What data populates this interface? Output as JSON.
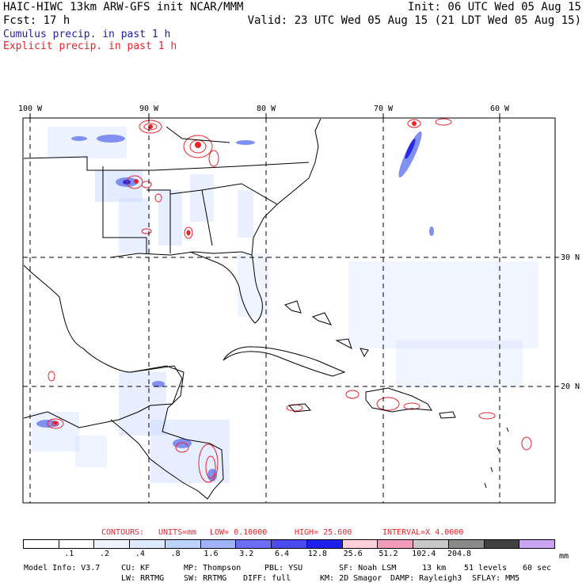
{
  "header": {
    "title": "HAIC-HIWC 13km ARW-GFS init   NCAR/MMM",
    "init": "Init: 06 UTC Wed 05 Aug 15",
    "fcst": "Fcst:   17 h",
    "valid": "Valid: 23 UTC Wed 05 Aug 15 (21 LDT Wed 05 Aug 15)",
    "legend_cumulus": "Cumulus precip. in past 1 h",
    "legend_explicit": "Explicit precip. in past 1 h",
    "cumulus_color": "#3a3ad8",
    "explicit_color": "#e8232a"
  },
  "map": {
    "lon_labels": [
      "100 W",
      "90 W",
      "80 W",
      "70 W",
      "60 W"
    ],
    "lat_labels": [
      "30 N",
      "20 N"
    ],
    "coast_color": "#000000",
    "gridline_style": "dashed"
  },
  "contours": {
    "title": "CONTOURS:",
    "units": "UNITS=mm",
    "low": "LOW= 0.10000",
    "high": "HIGH= 25.600",
    "interval": "INTERVAL=X  4.0000",
    "color": "#e8232a"
  },
  "colorbar": {
    "unit": "mm",
    "ticks": [
      ".1",
      ".2",
      ".4",
      ".8",
      "1.6",
      "3.2",
      "6.4",
      "12.8",
      "25.6",
      "51.2",
      "102.4",
      "204.8"
    ],
    "colors": [
      "#ffffff",
      "#ffffff",
      "#eef3ff",
      "#dde9ff",
      "#bcd3ff",
      "#9fb4fb",
      "#6c6cf5",
      "#4a4aee",
      "#1f1fee",
      "#ffd0da",
      "#f29bbb",
      "#c8c8c8",
      "#8a8a8a",
      "#404040",
      "#c9a4f2"
    ]
  },
  "footer": {
    "line1": [
      "Model Info: V3.7",
      "CU: KF",
      "MP: Thompson",
      "PBL: YSU",
      "SF: Noah LSM",
      "13 km",
      "51 levels",
      "60 sec"
    ],
    "line2": [
      "LW: RRTMG",
      "SW: RRTMG",
      "DIFF: full",
      "KM: 2D Smagor",
      "DAMP: Rayleigh3",
      "SFLAY: MM5"
    ]
  }
}
